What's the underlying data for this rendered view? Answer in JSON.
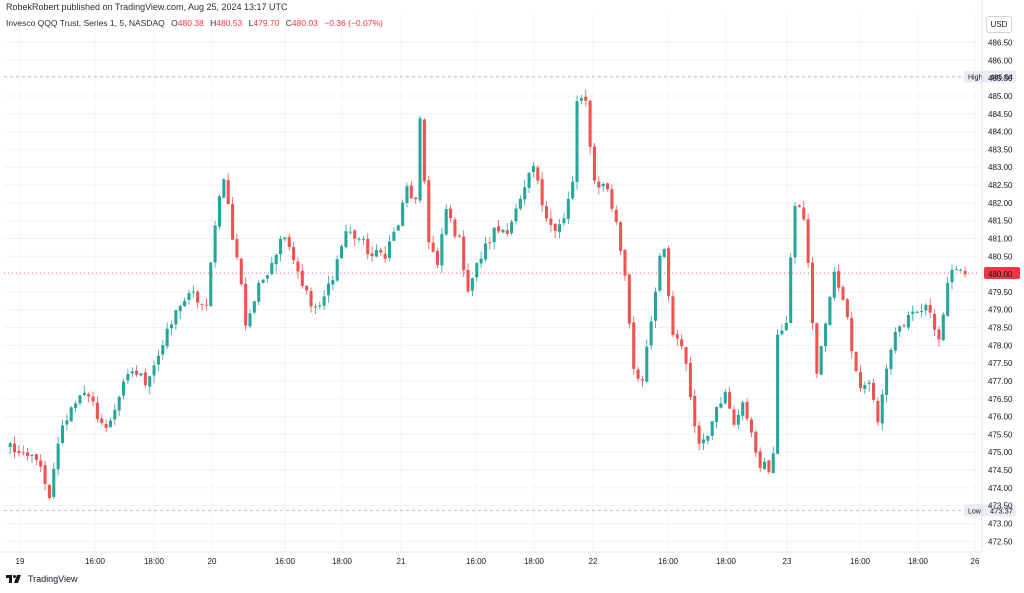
{
  "header": {
    "publisher": "RobekRobert published on TradingView.com, Aug 25, 2024 13:17 UTC"
  },
  "legend": {
    "symbol": "Invesco QQQ Trust, Series 1, 5, NASDAQ",
    "open_label": "O",
    "open_value": "480.38",
    "high_label": "H",
    "high_value": "480.53",
    "low_label": "L",
    "low_value": "479.70",
    "close_label": "C",
    "close_value": "480.03",
    "change": "−0.36 (−0.07%)"
  },
  "currency": "USD",
  "brand": {
    "name": "TradingView",
    "logo_icon": "tradingview-logo-icon"
  },
  "colors": {
    "up": "#26a69a",
    "down": "#ef5350",
    "grid": "#f0f3fa",
    "last_price_line": "#f23645"
  },
  "chart_data": {
    "type": "candlestick",
    "title": "",
    "xlabel": "",
    "ylabel": "",
    "ylim": [
      472.2,
      487.3
    ],
    "y_ticks": [
      472.5,
      473.0,
      473.5,
      474.0,
      474.5,
      475.0,
      475.5,
      476.0,
      476.5,
      477.0,
      477.5,
      478.0,
      478.5,
      479.0,
      479.5,
      480.0,
      480.5,
      481.0,
      481.5,
      482.0,
      482.5,
      483.0,
      483.5,
      484.0,
      484.5,
      485.0,
      485.5,
      486.0,
      486.5
    ],
    "y_tick_labels": [
      "472.50",
      "473.00",
      "473.50",
      "474.00",
      "474.50",
      "475.00",
      "475.50",
      "476.00",
      "476.50",
      "477.00",
      "477.50",
      "478.00",
      "478.50",
      "479.00",
      "479.50",
      "480.00",
      "480.50",
      "481.00",
      "481.50",
      "482.00",
      "482.50",
      "483.00",
      "483.50",
      "484.00",
      "484.50",
      "485.00",
      "485.50",
      "486.00",
      "486.50"
    ],
    "x_tick_labels": [
      "19",
      "16:00",
      "18:00",
      "20",
      "16:00",
      "18:00",
      "21",
      "16:00",
      "18:00",
      "22",
      "16:00",
      "18:00",
      "23",
      "16:00",
      "18:00",
      "26"
    ],
    "grid": true,
    "high_marker": {
      "label": "High",
      "value": "485.54"
    },
    "low_marker": {
      "label": "Low",
      "value": "473.37"
    },
    "last_price_line": 480.03,
    "close_path": [
      {
        "bar": 0,
        "close": 475.2
      },
      {
        "bar": 3,
        "close": 474.8
      },
      {
        "bar": 6,
        "close": 474.9
      },
      {
        "bar": 9,
        "close": 473.6
      },
      {
        "bar": 11,
        "close": 475.3
      },
      {
        "bar": 13,
        "close": 476.0
      },
      {
        "bar": 16,
        "close": 476.7
      },
      {
        "bar": 19,
        "close": 476.3
      },
      {
        "bar": 22,
        "close": 475.6
      },
      {
        "bar": 25,
        "close": 476.6
      },
      {
        "bar": 28,
        "close": 477.3
      },
      {
        "bar": 31,
        "close": 477.0
      },
      {
        "bar": 35,
        "close": 478.0
      },
      {
        "bar": 39,
        "close": 479.2
      },
      {
        "bar": 42,
        "close": 479.4
      },
      {
        "bar": 45,
        "close": 479.0
      },
      {
        "bar": 47,
        "close": 481.5
      },
      {
        "bar": 49,
        "close": 482.8
      },
      {
        "bar": 51,
        "close": 481.0
      },
      {
        "bar": 53,
        "close": 479.8
      },
      {
        "bar": 54,
        "close": 478.6
      },
      {
        "bar": 57,
        "close": 479.6
      },
      {
        "bar": 60,
        "close": 480.4
      },
      {
        "bar": 63,
        "close": 481.2
      },
      {
        "bar": 66,
        "close": 480.1
      },
      {
        "bar": 69,
        "close": 479.1
      },
      {
        "bar": 71,
        "close": 479.0
      },
      {
        "bar": 74,
        "close": 480.0
      },
      {
        "bar": 77,
        "close": 481.2
      },
      {
        "bar": 80,
        "close": 481.0
      },
      {
        "bar": 83,
        "close": 480.5
      },
      {
        "bar": 86,
        "close": 480.6
      },
      {
        "bar": 89,
        "close": 481.4
      },
      {
        "bar": 91,
        "close": 482.4
      },
      {
        "bar": 93,
        "close": 482.0
      },
      {
        "bar": 94,
        "close": 484.2
      },
      {
        "bar": 96,
        "close": 481.0
      },
      {
        "bar": 98,
        "close": 480.2
      },
      {
        "bar": 100,
        "close": 481.8
      },
      {
        "bar": 103,
        "close": 480.9
      },
      {
        "bar": 105,
        "close": 479.6
      },
      {
        "bar": 108,
        "close": 480.5
      },
      {
        "bar": 111,
        "close": 481.2
      },
      {
        "bar": 114,
        "close": 481.3
      },
      {
        "bar": 117,
        "close": 482.0
      },
      {
        "bar": 120,
        "close": 483.0
      },
      {
        "bar": 122,
        "close": 482.0
      },
      {
        "bar": 125,
        "close": 481.2
      },
      {
        "bar": 127,
        "close": 481.5
      },
      {
        "bar": 129,
        "close": 482.6
      },
      {
        "bar": 130,
        "close": 484.8
      },
      {
        "bar": 132,
        "close": 484.8
      },
      {
        "bar": 134,
        "close": 482.6
      },
      {
        "bar": 137,
        "close": 482.4
      },
      {
        "bar": 139,
        "close": 481.4
      },
      {
        "bar": 141,
        "close": 480.0
      },
      {
        "bar": 143,
        "close": 477.4
      },
      {
        "bar": 145,
        "close": 477.0
      },
      {
        "bar": 147,
        "close": 478.6
      },
      {
        "bar": 149,
        "close": 480.4
      },
      {
        "bar": 150,
        "close": 480.6
      },
      {
        "bar": 152,
        "close": 478.3
      },
      {
        "bar": 154,
        "close": 478.1
      },
      {
        "bar": 156,
        "close": 476.6
      },
      {
        "bar": 158,
        "close": 475.2
      },
      {
        "bar": 160,
        "close": 475.6
      },
      {
        "bar": 162,
        "close": 476.4
      },
      {
        "bar": 164,
        "close": 476.6
      },
      {
        "bar": 166,
        "close": 475.7
      },
      {
        "bar": 168,
        "close": 476.5
      },
      {
        "bar": 170,
        "close": 475.4
      },
      {
        "bar": 172,
        "close": 474.7
      },
      {
        "bar": 174,
        "close": 474.5
      },
      {
        "bar": 175,
        "close": 474.8
      },
      {
        "bar": 176,
        "close": 478.4
      },
      {
        "bar": 178,
        "close": 478.6
      },
      {
        "bar": 180,
        "close": 482.0
      },
      {
        "bar": 182,
        "close": 481.6
      },
      {
        "bar": 183,
        "close": 480.2
      },
      {
        "bar": 185,
        "close": 477.2
      },
      {
        "bar": 187,
        "close": 478.6
      },
      {
        "bar": 189,
        "close": 480.0
      },
      {
        "bar": 191,
        "close": 479.4
      },
      {
        "bar": 193,
        "close": 478.0
      },
      {
        "bar": 195,
        "close": 476.8
      },
      {
        "bar": 197,
        "close": 477.0
      },
      {
        "bar": 199,
        "close": 475.8
      },
      {
        "bar": 201,
        "close": 477.4
      },
      {
        "bar": 203,
        "close": 478.4
      },
      {
        "bar": 205,
        "close": 478.6
      },
      {
        "bar": 207,
        "close": 478.8
      },
      {
        "bar": 209,
        "close": 479.0
      },
      {
        "bar": 211,
        "close": 479.0
      },
      {
        "bar": 213,
        "close": 478.2
      },
      {
        "bar": 215,
        "close": 479.6
      },
      {
        "bar": 217,
        "close": 480.3
      },
      {
        "bar": 219,
        "close": 480.0
      }
    ]
  }
}
